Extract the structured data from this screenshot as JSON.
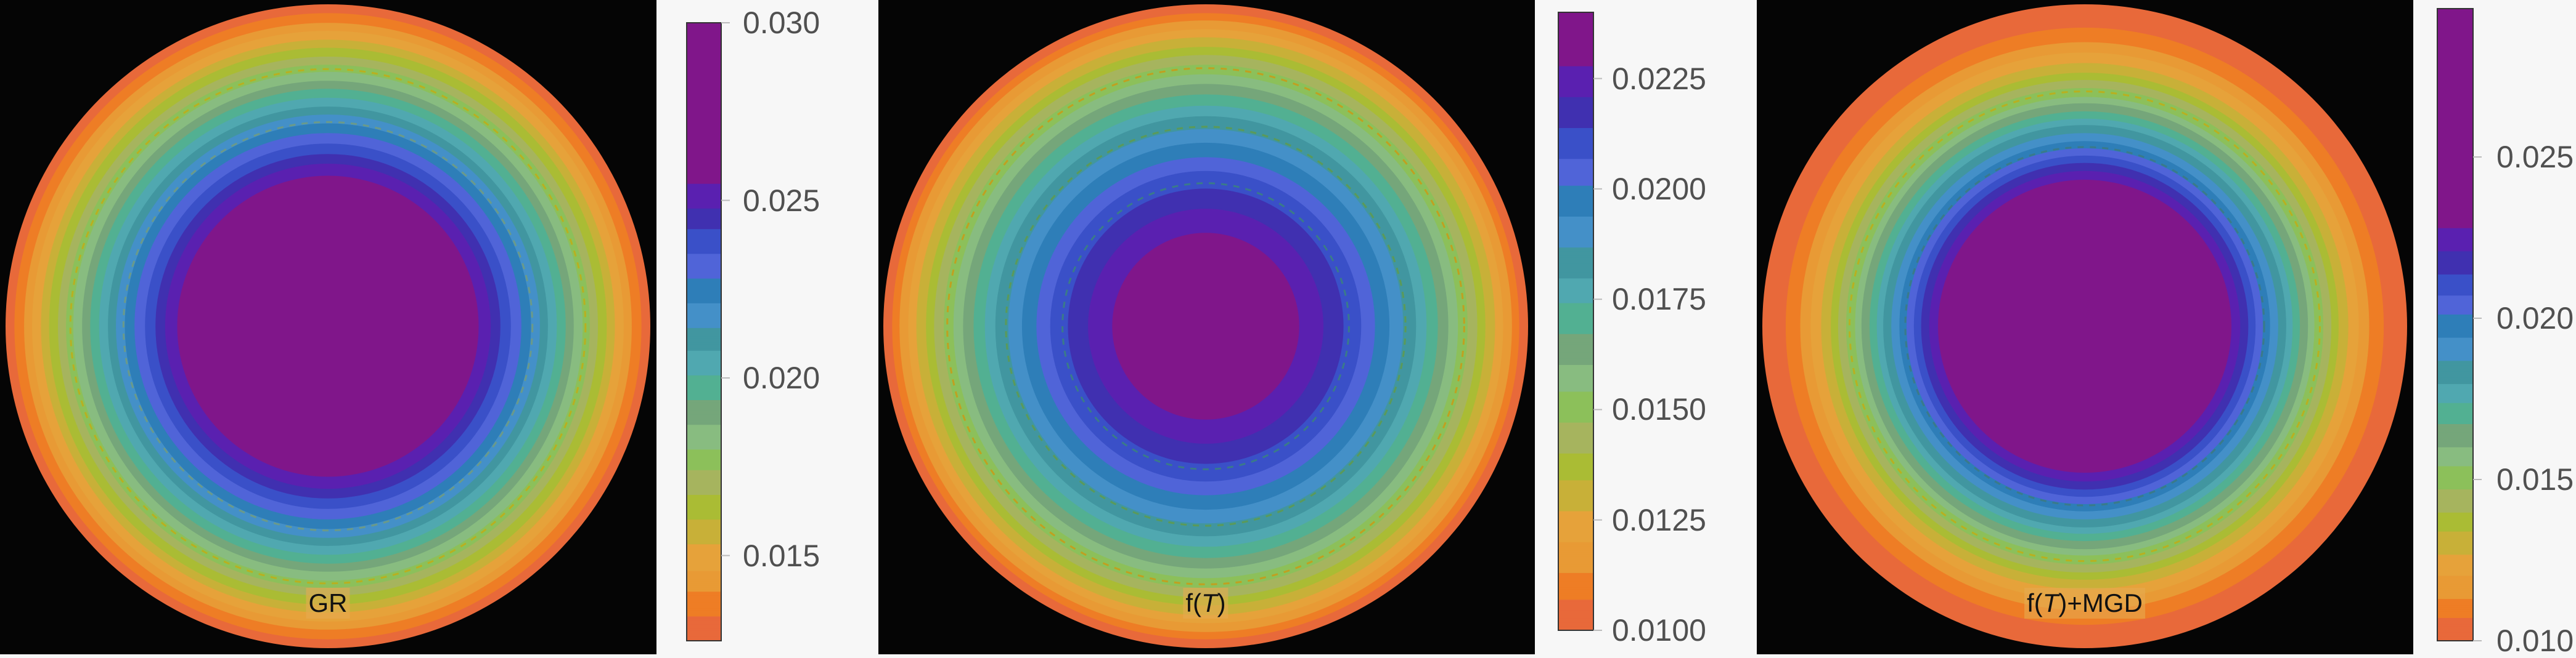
{
  "chart_data": [
    {
      "type": "heatmap",
      "label_parts": [
        "GR"
      ],
      "colorbar": {
        "min": 0.0126,
        "max": 0.03,
        "ticks": [
          0.015,
          0.02,
          0.025,
          0.03
        ],
        "tick_labels": [
          "0.015",
          "0.020",
          "0.025",
          "0.030"
        ]
      },
      "radial_profile": {
        "r": [
          0,
          0.1,
          0.2,
          0.3,
          0.4,
          0.5,
          0.6,
          0.7,
          0.8,
          0.9,
          1.0
        ],
        "value": [
          0.03,
          0.02979,
          0.02917,
          0.02815,
          0.02674,
          0.02495,
          0.02283,
          0.02041,
          0.01777,
          0.01506,
          0.0127
        ]
      },
      "contour_levels": [
        0.0126,
        0.0133,
        0.014,
        0.0146,
        0.0153,
        0.016,
        0.0167,
        0.0174,
        0.018,
        0.0187,
        0.0194,
        0.0201,
        0.0208,
        0.0214,
        0.0221,
        0.0228,
        0.0235,
        0.0242,
        0.0248,
        0.0255
      ],
      "dashed_contours": [
        0.022,
        0.0178
      ],
      "dashed_colors": [
        "#6a9a8a",
        "#b8b020"
      ]
    },
    {
      "type": "heatmap",
      "label_parts": [
        "f(",
        "T",
        ")"
      ],
      "colorbar": {
        "min": 0.01,
        "max": 0.024,
        "ticks": [
          0.01,
          0.0125,
          0.015,
          0.0175,
          0.02,
          0.0225
        ],
        "tick_labels": [
          "0.0100",
          "0.0125",
          "0.0150",
          "0.0175",
          "0.0200",
          "0.0225"
        ]
      },
      "radial_profile": {
        "r": [
          0,
          0.1,
          0.2,
          0.3,
          0.4,
          0.5,
          0.6,
          0.7,
          0.8,
          0.9,
          1.0
        ],
        "value": [
          0.024,
          0.02386,
          0.02344,
          0.02274,
          0.02176,
          0.0205,
          0.01896,
          0.01714,
          0.01504,
          0.01266,
          0.01
        ]
      },
      "contour_levels": [
        0.01,
        0.0107,
        0.0113,
        0.012,
        0.0127,
        0.0134,
        0.014,
        0.0147,
        0.0154,
        0.016,
        0.0167,
        0.0174,
        0.018,
        0.0187,
        0.0194,
        0.0201,
        0.0207,
        0.0214,
        0.0221,
        0.0228
      ],
      "dashed_contours": [
        0.0212,
        0.0186,
        0.015
      ],
      "dashed_colors": [
        "#3a7a8a",
        "#5a9a5a",
        "#c0a020"
      ]
    },
    {
      "type": "heatmap",
      "label_parts": [
        "f(",
        "T",
        ")+MGD"
      ],
      "colorbar": {
        "min": 0.01,
        "max": 0.0296,
        "ticks": [
          0.01,
          0.015,
          0.02,
          0.025
        ],
        "tick_labels": [
          "0.010",
          "0.015",
          "0.020",
          "0.025"
        ]
      },
      "radial_profile": {
        "r": [
          0,
          0.1,
          0.2,
          0.3,
          0.4,
          0.5,
          0.6,
          0.7,
          0.8,
          0.9,
          1.0
        ],
        "value": [
          0.0296,
          0.02925,
          0.0282,
          0.02652,
          0.0243,
          0.02164,
          0.01874,
          0.0158,
          0.01308,
          0.01097,
          0.01
        ]
      },
      "contour_levels": [
        0.01,
        0.0107,
        0.0113,
        0.012,
        0.0127,
        0.0134,
        0.014,
        0.0147,
        0.0154,
        0.016,
        0.0167,
        0.0174,
        0.018,
        0.0187,
        0.0194,
        0.0201,
        0.0207,
        0.0214,
        0.0221,
        0.0228
      ],
      "dashed_contours": [
        0.02,
        0.015
      ],
      "dashed_colors": [
        "#3a7a8a",
        "#b8b020"
      ]
    }
  ],
  "band_colors": [
    "#e0603a",
    "#e8693a",
    "#ee7d25",
    "#e89a35",
    "#e6a23a",
    "#c8b038",
    "#aabc34",
    "#a6b45e",
    "#8cc05a",
    "#88bc80",
    "#75a67a",
    "#52b092",
    "#50a8b0",
    "#4196a0",
    "#4490c8",
    "#2e7eb8",
    "#5064d8",
    "#3a50c8",
    "#4030b0",
    "#5a20b0",
    "#80168a"
  ],
  "plot_background": "#050505",
  "colorbar_background": "#f7f7f7"
}
